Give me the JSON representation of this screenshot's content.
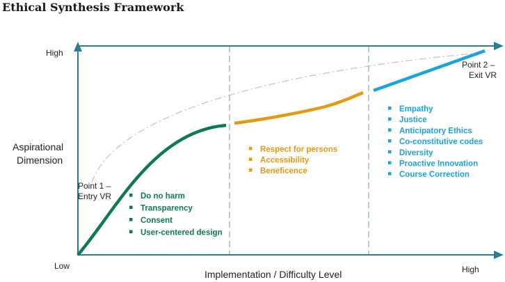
{
  "title": "Ethical Synthesis Framework",
  "y_axis": {
    "high": "High",
    "low": "Low",
    "title_line1": "Aspirational",
    "title_line2": "Dimension"
  },
  "x_axis": {
    "high": "High",
    "title": "Implementation / Difficulty Level"
  },
  "point1": {
    "line1": "Point 1 –",
    "line2": "Entry VR"
  },
  "point2": {
    "line1": "Point 2 –",
    "line2": "Exit VR"
  },
  "colors": {
    "axis": "#2a7f8c",
    "green": "#0f7a52",
    "orange": "#e39a12",
    "blue": "#1ba3dd",
    "dashed": "#9ab3bb",
    "ideal": "#c8c8c8"
  },
  "groups": [
    {
      "id": "green",
      "items": [
        "Do no harm",
        "Transparency",
        "Consent",
        "User-centered design"
      ]
    },
    {
      "id": "orange",
      "items": [
        "Respect for persons",
        "Accessibility",
        "Beneficence"
      ]
    },
    {
      "id": "blue",
      "items": [
        "Empathy",
        "Justice",
        "Anticipatory Ethics",
        "Co-constitutive codes",
        "Diversity",
        "Proactive Innovation",
        "Course Correction"
      ]
    }
  ]
}
